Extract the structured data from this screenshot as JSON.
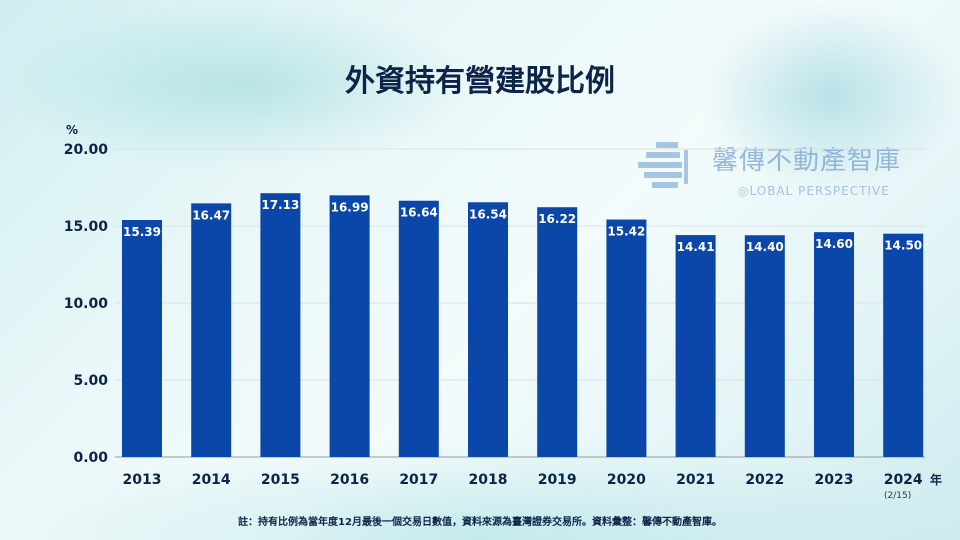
{
  "title": "外資持有營建股比例",
  "logo": {
    "chinese": "馨傳不動產智庫",
    "english": "LOBAL PERSPECTIVE"
  },
  "footnote": "註：持有比例為當年度12月最後一個交易日數值，資料來源為臺灣證券交易所。資料彙整：馨傳不動產智庫。",
  "colors": {
    "bar": "#0a47a8",
    "title": "#0c2447"
  },
  "chart_data": {
    "type": "bar",
    "title": "外資持有營建股比例",
    "ylabel": "%",
    "xlabel": "年",
    "ylim": [
      0,
      20
    ],
    "yticks": [
      "0.00",
      "5.00",
      "10.00",
      "15.00",
      "20.00"
    ],
    "grid": true,
    "categories": [
      "2013",
      "2014",
      "2015",
      "2016",
      "2017",
      "2018",
      "2019",
      "2020",
      "2021",
      "2022",
      "2023",
      "2024"
    ],
    "category_note": "(2/15)",
    "values": [
      15.39,
      16.47,
      17.13,
      16.99,
      16.64,
      16.54,
      16.22,
      15.42,
      14.41,
      14.4,
      14.6,
      14.5
    ],
    "data_labels": [
      "15.39",
      "16.47",
      "17.13",
      "16.99",
      "16.64",
      "16.54",
      "16.22",
      "15.42",
      "14.41",
      "14.40",
      "14.60",
      "14.50"
    ]
  }
}
